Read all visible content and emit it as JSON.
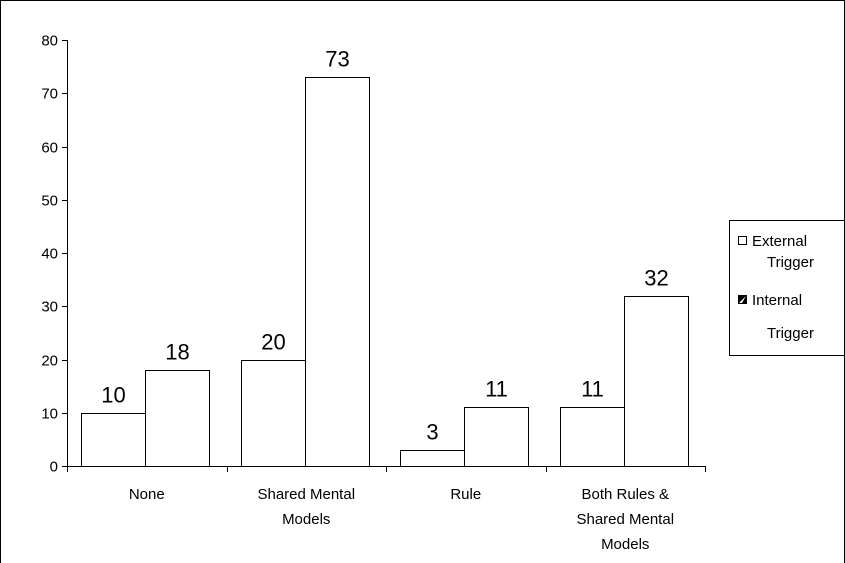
{
  "chart_data": {
    "type": "bar",
    "categories": [
      [
        "None"
      ],
      [
        "Shared Mental",
        "Models"
      ],
      [
        "Rule"
      ],
      [
        "Both Rules &",
        "Shared Mental",
        "Models"
      ]
    ],
    "series": [
      {
        "name": [
          "External",
          "Trigger"
        ],
        "values": [
          10,
          20,
          3,
          11
        ],
        "legend_marker": "hollow-square"
      },
      {
        "name": [
          "Internal",
          "Trigger"
        ],
        "values": [
          18,
          73,
          11,
          32
        ],
        "legend_marker": "half-filled-square"
      }
    ],
    "data_labels": [
      [
        "10",
        "20",
        "3",
        "11"
      ],
      [
        "18",
        "73",
        "11",
        "32"
      ]
    ],
    "y_ticks": [
      "0",
      "10",
      "20",
      "30",
      "40",
      "50",
      "60",
      "70",
      "80"
    ],
    "ylim": [
      0,
      80
    ],
    "title": "",
    "xlabel": "",
    "ylabel": "",
    "grid": false,
    "legend_position": "right",
    "colors": {
      "bar_fill": "#ffffff",
      "bar_stroke": "#000000",
      "axis": "#000000"
    }
  }
}
